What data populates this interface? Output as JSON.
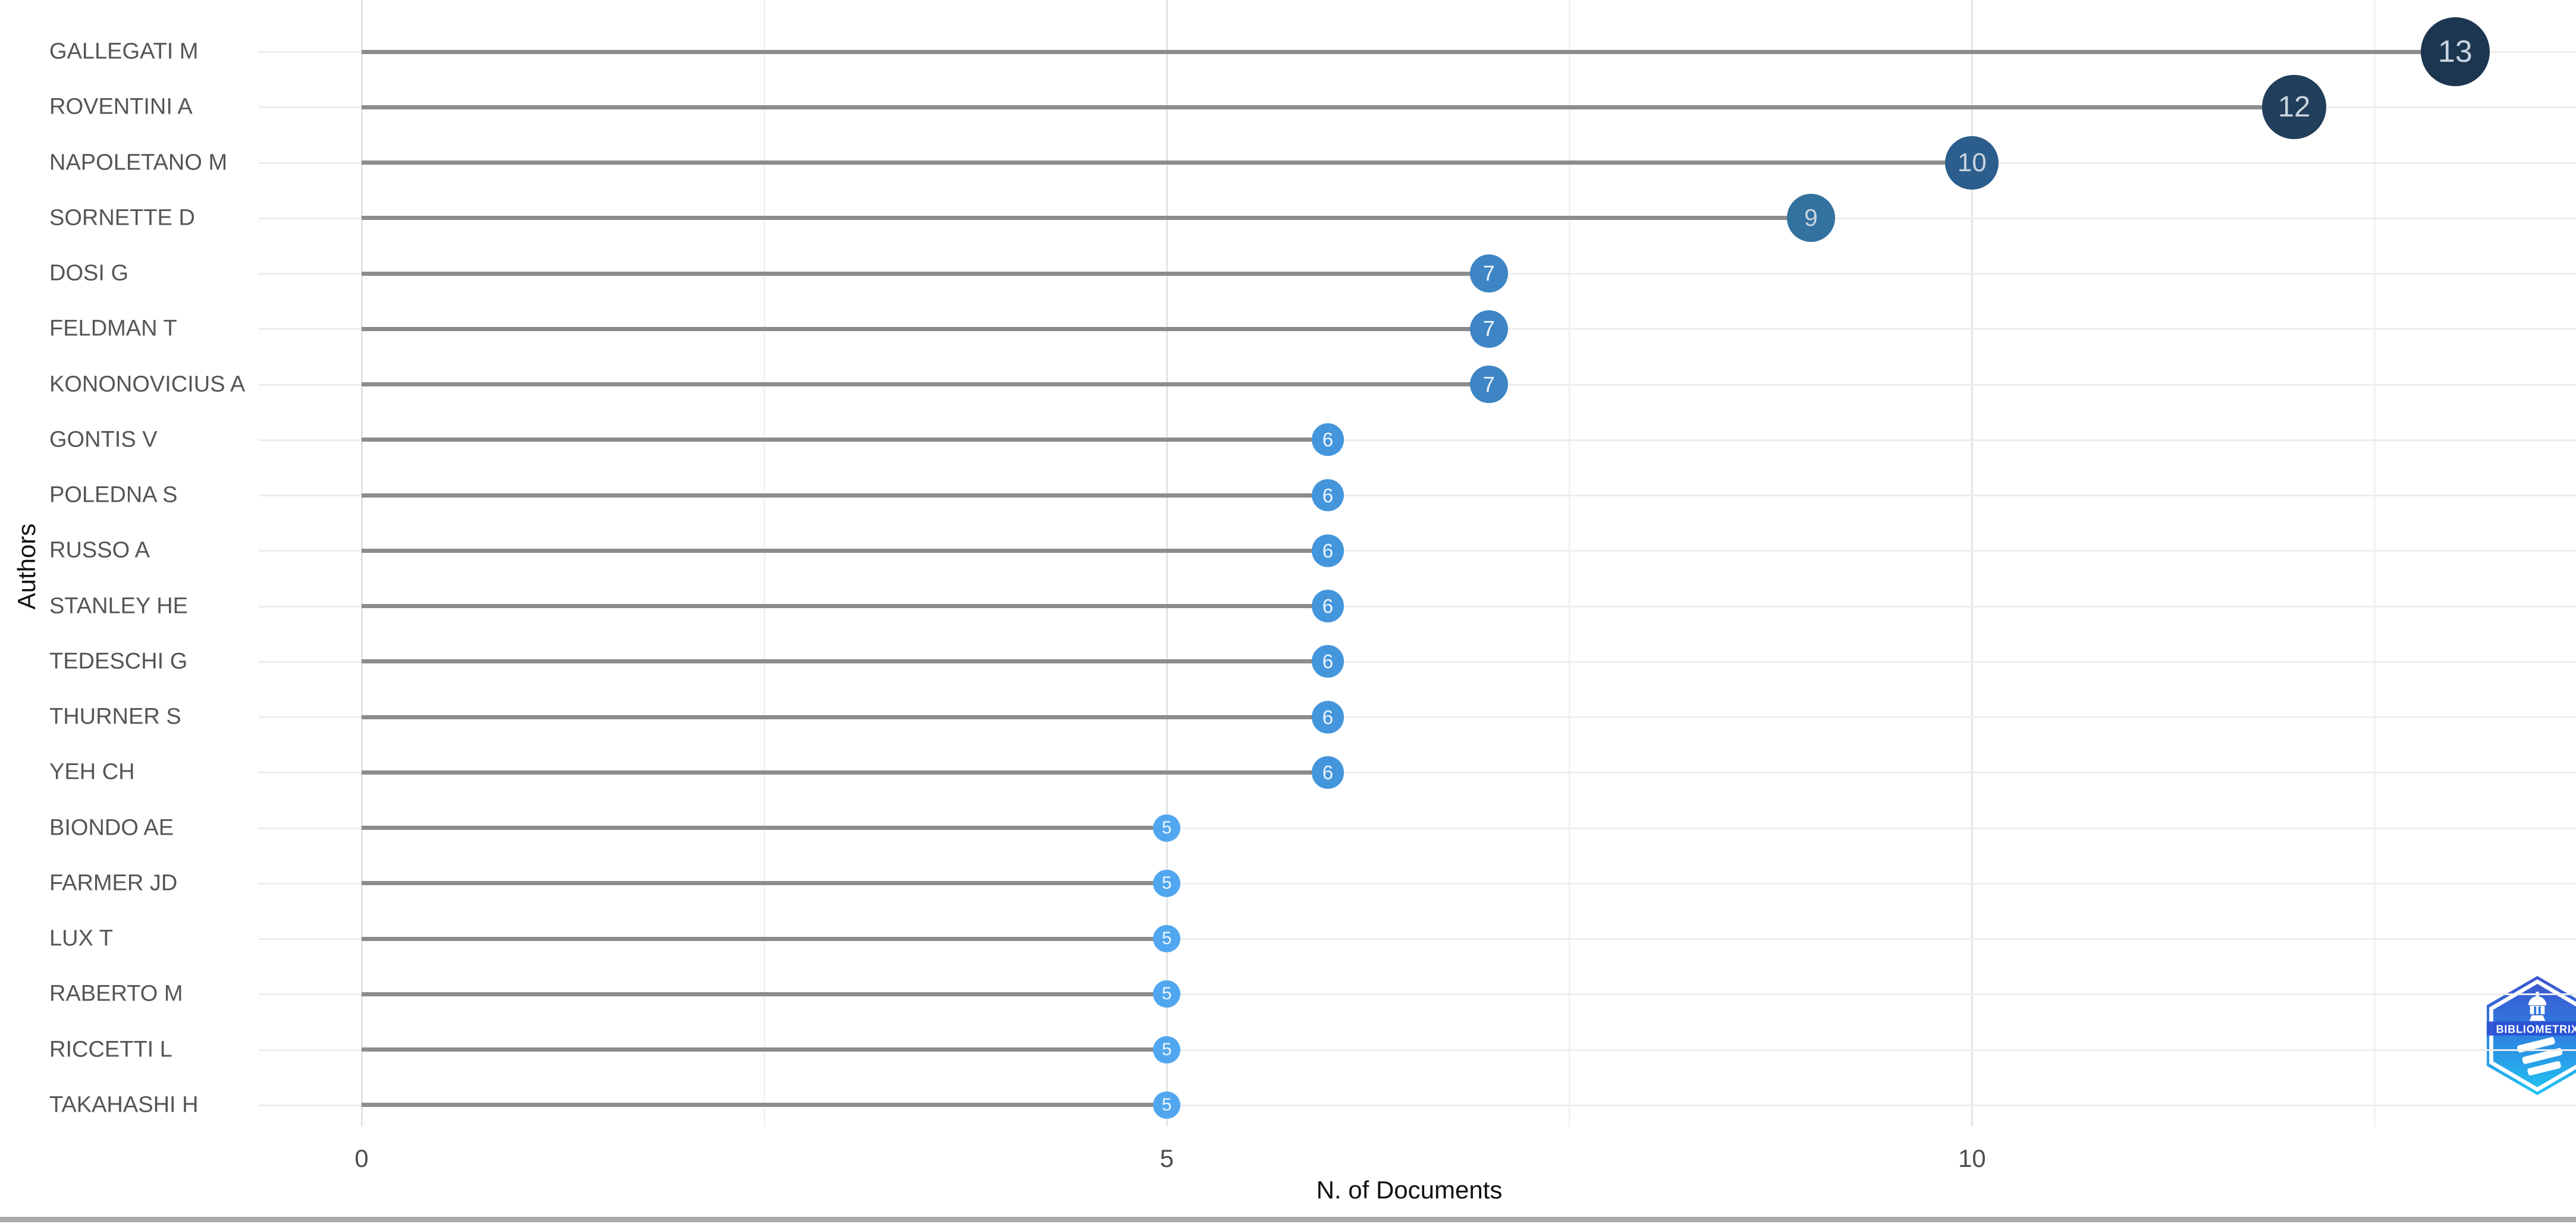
{
  "chart_data": {
    "type": "bar",
    "variant": "horizontal-lollipop",
    "title": "",
    "categories": [
      "GALLEGATI M",
      "ROVENTINI A",
      "NAPOLETANO M",
      "SORNETTE D",
      "DOSI G",
      "FELDMAN T",
      "KONONOVICIUS A",
      "GONTIS V",
      "POLEDNA S",
      "RUSSO A",
      "STANLEY HE",
      "TEDESCHI G",
      "THURNER S",
      "YEH CH",
      "BIONDO AE",
      "FARMER JD",
      "LUX T",
      "RABERTO M",
      "RICCETTI L",
      "TAKAHASHI H"
    ],
    "values": [
      13,
      12,
      10,
      9,
      7,
      7,
      7,
      6,
      6,
      6,
      6,
      6,
      6,
      6,
      5,
      5,
      5,
      5,
      5,
      5
    ],
    "xlabel": "N. of Documents",
    "ylabel": "Authors",
    "xticks": [
      0,
      5,
      10
    ],
    "xminor": [
      2.5,
      7.5,
      12.5
    ],
    "xlim": [
      -0.65,
      13.75
    ],
    "grid": true,
    "legend": false,
    "colors_by_value": {
      "5": "#51a7ef",
      "6": "#4496dc",
      "7": "#3d85c4",
      "9": "#33719f",
      "10": "#2b5e8c",
      "12": "#213e5b",
      "13": "#1d3650"
    },
    "dot_text_color_dark": "#c9d4df",
    "dot_text_color_light": "#eef6fd",
    "label_color": "#555555",
    "tick_color": "#4d4d4d",
    "axis_title_color": "#111111",
    "stem_color": "#8c8c8c",
    "grid_major_color": "#e4e4e4",
    "grid_minor_color": "#f2f2f2",
    "row_line_color": "#ededed"
  },
  "watermark": {
    "label": "BIBLIOMETRIX"
  },
  "scrollbar": {
    "color": "#a9a9a9"
  }
}
